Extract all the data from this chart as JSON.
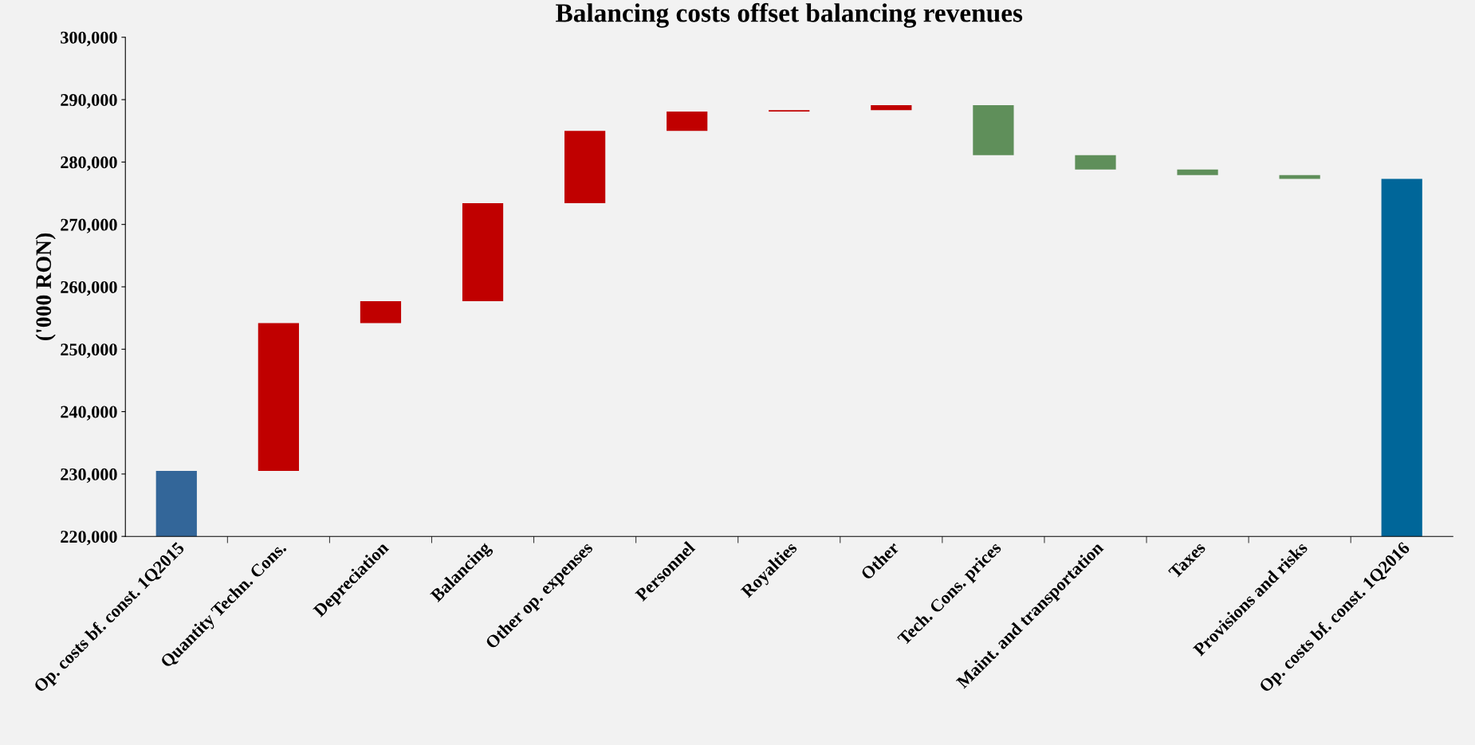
{
  "chart_data": {
    "type": "bar",
    "title": "Balancing costs offset balancing revenues",
    "ylabel": "('000 RON)",
    "categories": [
      "Op. costs bf. const. 1Q2015",
      "Quantity Techn. Cons.",
      "Depreciation",
      "Balancing",
      "Other op. expenses",
      "Personnel",
      "Royalties",
      "Other",
      "Tech. Cons. prices",
      "Maint. and transportation",
      "Taxes",
      "Provisions and risks",
      "Op. costs bf. const. 1Q2016"
    ],
    "base": [
      220000,
      230500,
      254200,
      257700,
      273400,
      285000,
      288100,
      288300,
      289100,
      281100,
      278800,
      277900,
      220000
    ],
    "values": [
      10500,
      23700,
      3500,
      15700,
      11600,
      3100,
      200,
      800,
      -8000,
      -2300,
      -900,
      -600,
      57300
    ],
    "colors": [
      "#336699",
      "#c00000",
      "#c00000",
      "#c00000",
      "#c00000",
      "#c00000",
      "#c00000",
      "#c00000",
      "#5f8f5a",
      "#5f8f5a",
      "#5f8f5a",
      "#5f8f5a",
      "#006699"
    ],
    "ylim": [
      220000,
      300000
    ],
    "yticks": [
      {
        "value": 220000,
        "label": "220,000"
      },
      {
        "value": 230000,
        "label": "230,000"
      },
      {
        "value": 240000,
        "label": "240,000"
      },
      {
        "value": 250000,
        "label": "250,000"
      },
      {
        "value": 260000,
        "label": "260,000"
      },
      {
        "value": 270000,
        "label": "270,000"
      },
      {
        "value": 280000,
        "label": "280,000"
      },
      {
        "value": 290000,
        "label": "290,000"
      },
      {
        "value": 300000,
        "label": "300,000"
      }
    ],
    "grid": false,
    "legend": false
  }
}
